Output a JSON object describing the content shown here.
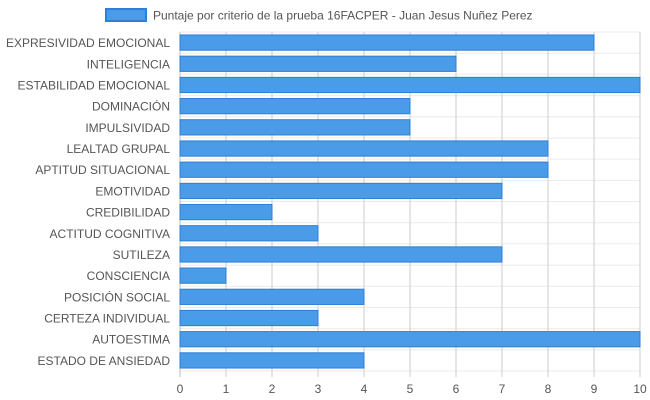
{
  "chart_data": {
    "type": "bar",
    "orientation": "horizontal",
    "title": "",
    "xlabel": "",
    "ylabel": "",
    "categories": [
      "EXPRESIVIDAD EMOCIONAL",
      "INTELIGENCIA",
      "ESTABILIDAD EMOCIONAL",
      "DOMINACIÓN",
      "IMPULSIVIDAD",
      "LEALTAD GRUPAL",
      "APTITUD SITUACIONAL",
      "EMOTIVIDAD",
      "CREDIBILIDAD",
      "ACTITUD COGNITIVA",
      "SUTILEZA",
      "CONSCIENCIA",
      "POSICIÓN SOCIAL",
      "CERTEZA INDIVIDUAL",
      "AUTOESTIMA",
      "ESTADO DE ANSIEDAD"
    ],
    "series": [
      {
        "name": "Puntaje por criterio de la prueba 16FACPER - Juan Jesus Nuñez Perez",
        "values": [
          9,
          6,
          10,
          5,
          5,
          8,
          8,
          7,
          2,
          3,
          7,
          1,
          4,
          3,
          10,
          4
        ],
        "color": "#4a9be8",
        "border_color": "#2f7fd4"
      }
    ],
    "xlim": [
      0,
      10
    ],
    "x_ticks": [
      "0",
      "1",
      "2",
      "3",
      "4",
      "5",
      "6",
      "7",
      "8",
      "9",
      "10"
    ],
    "grid": true,
    "legend_position": "top-center"
  }
}
